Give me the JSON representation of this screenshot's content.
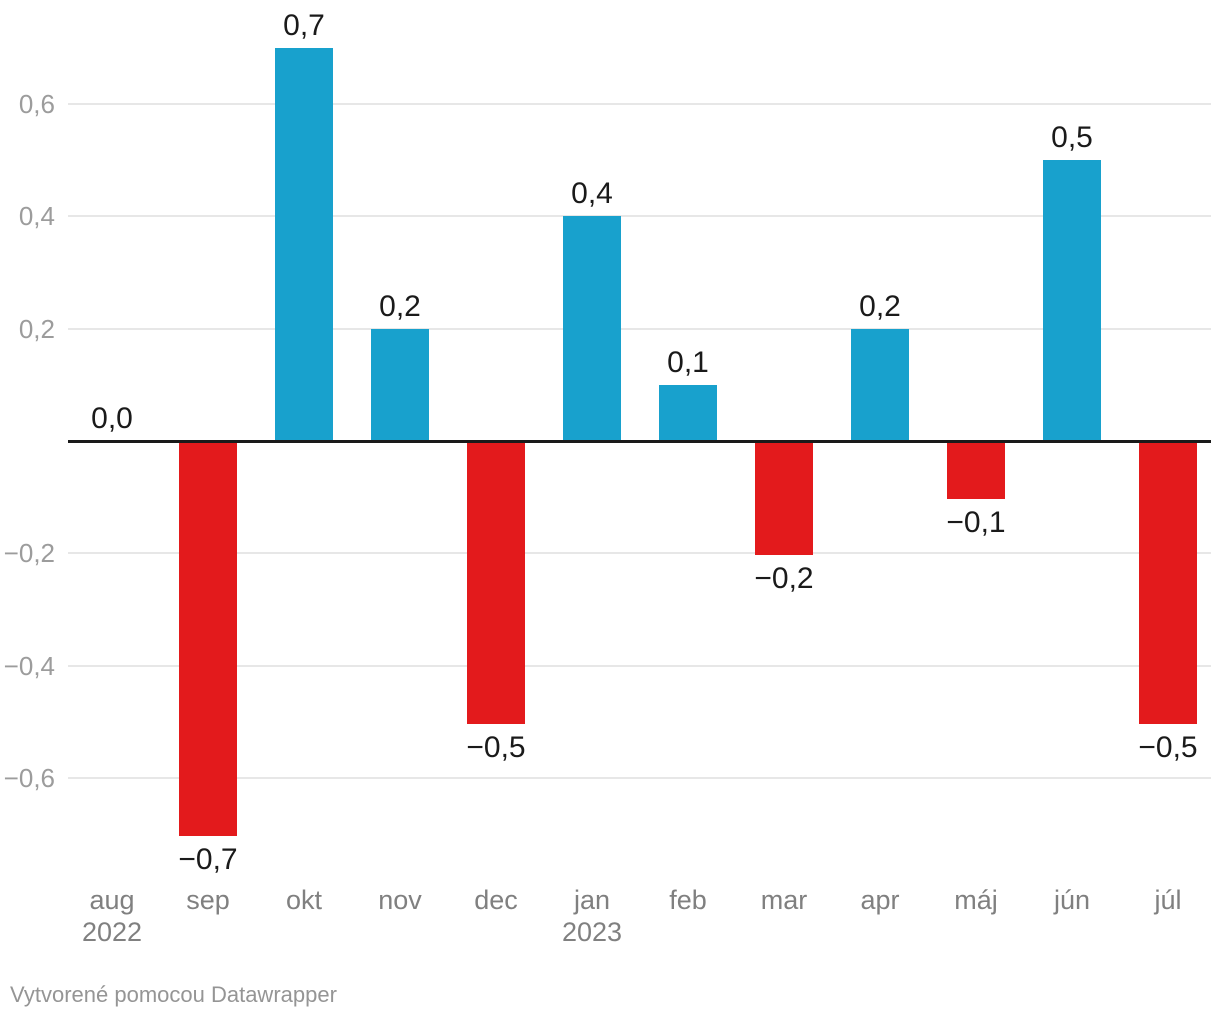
{
  "footer": {
    "attribution": "Vytvorené pomocou Datawrapper"
  },
  "chart_data": {
    "type": "bar",
    "title": "",
    "xlabel": "",
    "ylabel": "",
    "categories": [
      "aug",
      "sep",
      "okt",
      "nov",
      "dec",
      "jan",
      "feb",
      "mar",
      "apr",
      "máj",
      "jún",
      "júl"
    ],
    "category_years": [
      "2022",
      "",
      "",
      "",
      "",
      "2023",
      "",
      "",
      "",
      "",
      "",
      ""
    ],
    "values": [
      0.0,
      -0.7,
      0.7,
      0.2,
      -0.5,
      0.4,
      0.1,
      -0.2,
      0.2,
      -0.1,
      0.5,
      -0.5
    ],
    "value_labels": [
      "0,0",
      "−0,7",
      "0,7",
      "0,2",
      "−0,5",
      "0,4",
      "0,1",
      "−0,2",
      "0,2",
      "−0,1",
      "0,5",
      "−0,5"
    ],
    "y_ticks": [
      {
        "value": 0.6,
        "label": "0,6"
      },
      {
        "value": 0.4,
        "label": "0,4"
      },
      {
        "value": 0.2,
        "label": "0,2"
      },
      {
        "value": -0.2,
        "label": "−0,2"
      },
      {
        "value": -0.4,
        "label": "−0,4"
      },
      {
        "value": -0.6,
        "label": "−0,6"
      }
    ],
    "ylim": [
      -0.7,
      0.7
    ],
    "grid": true,
    "legend": "none",
    "decimal_separator": ",",
    "colors": {
      "positive": "#18a1cd",
      "negative": "#e31a1c"
    }
  }
}
